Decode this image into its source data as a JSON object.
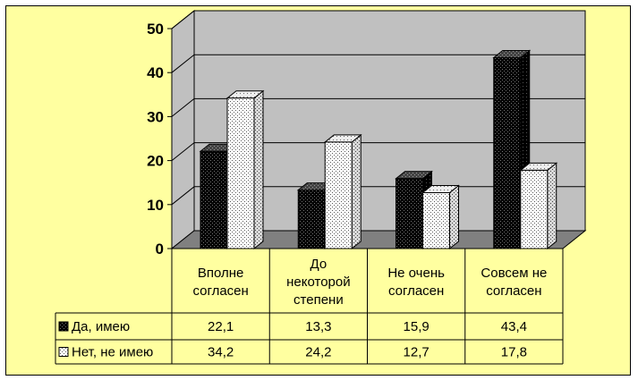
{
  "colors": {
    "background": "#ffffa0",
    "wall": "#c0c0c0",
    "floor": "#808080",
    "series_yes": "#000000",
    "series_no": "#ffffff"
  },
  "chart_data": {
    "type": "bar",
    "three_d": true,
    "categories": [
      [
        "Вполне",
        "согласен"
      ],
      [
        "До",
        "некоторой",
        "степени"
      ],
      [
        "Не очень",
        "согласен"
      ],
      [
        "Совсем не",
        "согласен"
      ]
    ],
    "series": [
      {
        "name": "Да, имею",
        "values": [
          22.1,
          13.3,
          15.9,
          43.4
        ],
        "labels": [
          "22,1",
          "13,3",
          "15,9",
          "43,4"
        ],
        "fill": "dark-dotted"
      },
      {
        "name": "Нет, не имею",
        "values": [
          34.2,
          24.2,
          12.7,
          17.8
        ],
        "labels": [
          "34,2",
          "24,2",
          "12,7",
          "17,8"
        ],
        "fill": "light-dotted"
      }
    ],
    "y_axis": {
      "min": 0,
      "max": 50,
      "step": 10,
      "ticks": [
        "0",
        "10",
        "20",
        "30",
        "40",
        "50"
      ]
    },
    "gridlines": true,
    "data_table": true,
    "legend": "in-data-table"
  }
}
